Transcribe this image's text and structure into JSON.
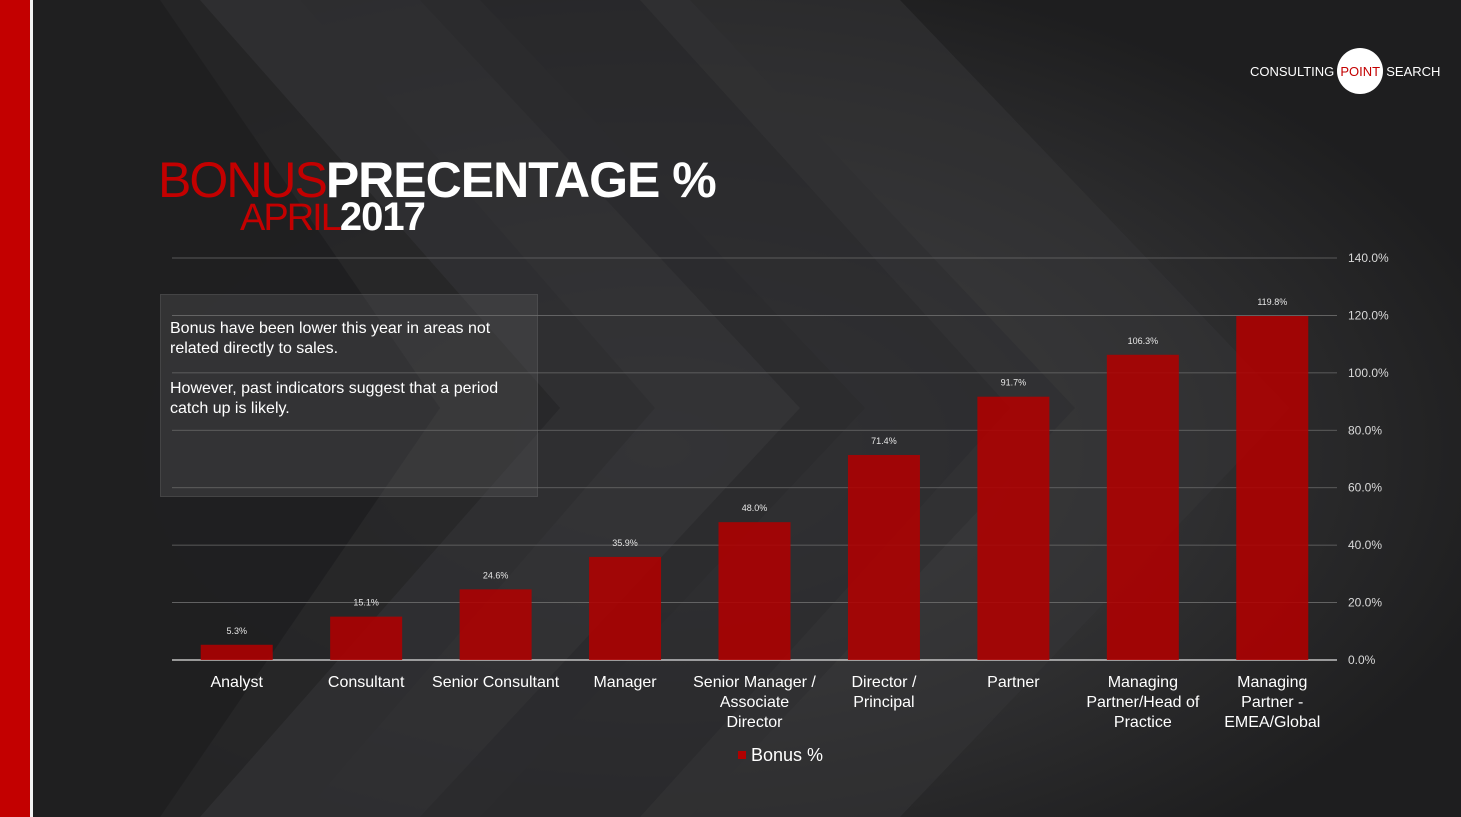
{
  "logo": {
    "left": "CONSULTING",
    "circle": "POINT",
    "right": "SEARCH"
  },
  "title": {
    "line1_red": "BONUS",
    "line1_white": "PRECENTAGE %",
    "line2_red": "APRIL",
    "line2_white": "2017"
  },
  "note": {
    "paragraph1": "Bonus have been lower this year in areas not related directly to sales.",
    "paragraph2": "However, past indicators suggest that a period catch up is likely."
  },
  "colors": {
    "accent": "#c30000",
    "bar": "#b00000",
    "background": "#2a2a2b"
  },
  "chart_data": {
    "type": "bar",
    "categories": [
      [
        "Analyst"
      ],
      [
        "Consultant"
      ],
      [
        "Senior Consultant"
      ],
      [
        "Manager"
      ],
      [
        "Senior Manager /",
        "Associate",
        "Director"
      ],
      [
        "Director /",
        "Principal"
      ],
      [
        "Partner"
      ],
      [
        "Managing",
        "Partner/Head of",
        "Practice"
      ],
      [
        "Managing",
        "Partner -",
        "EMEA/Global"
      ]
    ],
    "series": [
      {
        "name": "Bonus %",
        "values": [
          5.3,
          15.1,
          24.6,
          35.9,
          48.0,
          71.4,
          91.7,
          106.3,
          119.8
        ],
        "labels": [
          "5.3%",
          "15.1%",
          "24.6%",
          "35.9%",
          "48.0%",
          "71.4%",
          "91.7%",
          "106.3%",
          "119.8%"
        ]
      }
    ],
    "ylim": [
      0,
      140
    ],
    "yticks": [
      "0.0%",
      "20.0%",
      "40.0%",
      "60.0%",
      "80.0%",
      "100.0%",
      "120.0%",
      "140.0%"
    ],
    "ytick_values": [
      0,
      20,
      40,
      60,
      80,
      100,
      120,
      140
    ],
    "y_axis_side": "right",
    "grid": true,
    "legend": "bottom"
  }
}
